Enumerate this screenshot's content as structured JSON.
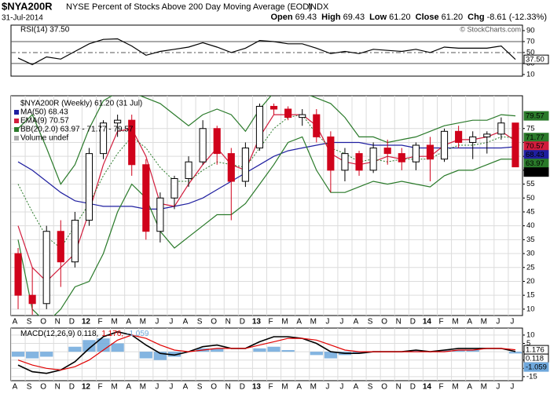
{
  "header": {
    "symbol": "$NYA200R",
    "description": "NYSE Percent of Stocks Above 200 Day Moving Average (EOD)",
    "exchange": "INDX",
    "date": "31-Jul-2014",
    "quote": [
      {
        "label": "Open",
        "value": "69.43"
      },
      {
        "label": "High",
        "value": "69.43"
      },
      {
        "label": "Low",
        "value": "61.20"
      },
      {
        "label": "Close",
        "value": "61.20"
      },
      {
        "label": "Chg",
        "value": "-8.61 (-12.33%)"
      }
    ],
    "credit": "© StockCharts.com"
  },
  "chart_data": [
    {
      "type": "line",
      "title": "RSI(14) 37.50",
      "color": "#000000",
      "values": [
        40,
        28,
        42,
        38,
        52,
        66,
        74,
        75,
        62,
        45,
        52,
        56,
        60,
        68,
        60,
        50,
        58,
        72,
        70,
        66,
        66,
        58,
        48,
        52,
        48,
        56,
        54,
        52,
        56,
        50,
        60,
        58,
        58,
        58,
        62,
        37.5
      ],
      "value_labels": [
        null,
        null,
        null,
        null,
        null,
        null,
        null,
        null,
        null,
        null,
        null,
        null,
        null,
        null,
        null,
        null,
        null,
        null,
        null,
        null,
        null,
        null,
        null,
        null,
        null,
        null,
        null,
        null,
        null,
        null,
        null,
        null,
        null,
        null,
        null,
        "37.50"
      ],
      "ylim": [
        7,
        100
      ],
      "yticks": [
        10,
        30,
        50,
        70,
        90
      ],
      "ref_lines": [
        30,
        50,
        70
      ]
    },
    {
      "type": "candlestick",
      "title": "$NYA200R (Weekly) 61.20 (31 Jul)",
      "categories": [
        "A",
        "S",
        "O",
        "N",
        "D",
        "12",
        "F",
        "M",
        "A",
        "M",
        "J",
        "J",
        "A",
        "S",
        "O",
        "N",
        "D",
        "13",
        "F",
        "M",
        "A",
        "M",
        "J",
        "J",
        "A",
        "S",
        "O",
        "N",
        "D",
        "14",
        "F",
        "M",
        "A",
        "M",
        "J",
        "J"
      ],
      "ohlc": {
        "open": [
          30,
          15,
          12,
          38,
          27,
          42,
          66,
          77,
          78,
          62,
          38,
          50,
          57,
          63,
          75,
          66,
          56,
          68,
          83,
          82,
          79,
          80,
          72,
          60,
          66,
          60,
          68,
          66,
          63,
          69,
          64,
          74,
          70,
          72,
          73,
          77
        ],
        "high": [
          32,
          25,
          40,
          42,
          45,
          68,
          78,
          80,
          80,
          64,
          52,
          58,
          65,
          78,
          76,
          68,
          70,
          84,
          84,
          83,
          82,
          82,
          74,
          68,
          67,
          70,
          71,
          68,
          70,
          72,
          75,
          76,
          74,
          74,
          79,
          77
        ],
        "low": [
          10,
          8,
          10,
          18,
          25,
          40,
          64,
          72,
          58,
          35,
          34,
          46,
          54,
          62,
          62,
          42,
          54,
          67,
          80,
          78,
          76,
          70,
          52,
          56,
          58,
          59,
          62,
          60,
          60,
          56,
          63,
          68,
          64,
          66,
          71,
          61.2
        ],
        "close": [
          15,
          12,
          38,
          27,
          42,
          66,
          77,
          78,
          62,
          38,
          50,
          57,
          63,
          75,
          66,
          56,
          68,
          83,
          82,
          79,
          80,
          72,
          60,
          66,
          60,
          68,
          66,
          63,
          69,
          64,
          74,
          70,
          72,
          73,
          77,
          61.2
        ],
        "value_labels": [
          null,
          null,
          null,
          null,
          null,
          null,
          null,
          null,
          null,
          null,
          null,
          null,
          null,
          null,
          null,
          null,
          null,
          null,
          null,
          null,
          null,
          null,
          null,
          null,
          null,
          null,
          null,
          null,
          null,
          null,
          null,
          null,
          null,
          null,
          null,
          "61.20"
        ]
      },
      "up_color": "#000000",
      "down_color": "#d0021b",
      "overlays": [
        {
          "name": "MA(50) 68.43",
          "color": "#1f1fa0",
          "values": [
            63,
            60,
            56,
            52,
            49,
            48,
            47,
            47,
            47,
            46,
            46,
            47,
            48,
            50,
            53,
            56,
            59,
            62,
            65,
            67,
            68,
            69,
            70,
            70,
            70,
            69,
            69,
            69,
            68,
            68,
            68,
            68,
            68,
            68,
            68,
            68.43
          ]
        },
        {
          "name": "EMA(9) 70.57",
          "color": "#d21c3c",
          "values": [
            40,
            25,
            20,
            25,
            30,
            45,
            62,
            74,
            75,
            65,
            48,
            47,
            55,
            62,
            68,
            62,
            60,
            72,
            80,
            80,
            80,
            76,
            66,
            63,
            62,
            63,
            65,
            64,
            65,
            65,
            69,
            71,
            71,
            72,
            74,
            70.57
          ]
        },
        {
          "name": "BB(20,2.0) 63.97 - 71.77 - 79.57",
          "color": "#2a7a2a",
          "upper": [
            75,
            80,
            68,
            55,
            62,
            75,
            85,
            88,
            88,
            86,
            84,
            80,
            76,
            80,
            82,
            80,
            74,
            82,
            88,
            88,
            88,
            86,
            84,
            79,
            72,
            72,
            70,
            71,
            72,
            74,
            76,
            77,
            78,
            78,
            80,
            79.57
          ],
          "middle": [
            55,
            45,
            36,
            32,
            40,
            48,
            58,
            66,
            72,
            68,
            61,
            56,
            56,
            60,
            63,
            62,
            61,
            68,
            75,
            79,
            80,
            73,
            68,
            66,
            63,
            64,
            63,
            64,
            64,
            64,
            67,
            69,
            69,
            70,
            72,
            71.77
          ],
          "lower": [
            35,
            10,
            5,
            10,
            18,
            20,
            30,
            45,
            55,
            50,
            38,
            32,
            36,
            40,
            44,
            44,
            48,
            55,
            62,
            70,
            72,
            60,
            52,
            52,
            54,
            56,
            55,
            56,
            55,
            54,
            58,
            60,
            60,
            62,
            64,
            63.97
          ]
        }
      ],
      "legend_extra": "Volume undef",
      "ylim": [
        7.7,
        86.8
      ],
      "yticks": [
        10,
        15,
        20,
        25,
        30,
        35,
        40,
        45,
        50,
        55,
        60,
        65,
        70,
        75
      ],
      "grid": true
    },
    {
      "type": "macd",
      "categories": [
        "A",
        "S",
        "O",
        "N",
        "D",
        "12",
        "F",
        "M",
        "A",
        "M",
        "J",
        "J",
        "A",
        "S",
        "O",
        "N",
        "D",
        "13",
        "F",
        "M",
        "A",
        "M",
        "J",
        "J",
        "A",
        "S",
        "O",
        "N",
        "D",
        "14",
        "F",
        "M",
        "A",
        "M",
        "J",
        "J"
      ],
      "series": [
        {
          "name": "MACD(12,26,9) 0.118,",
          "color": "#000000",
          "values": [
            -8,
            -12,
            -13,
            -11,
            -6,
            2,
            9,
            12,
            10,
            4,
            -1,
            -2,
            0,
            3,
            4,
            2,
            2,
            6,
            9,
            9,
            8,
            5,
            0,
            -1,
            -1,
            0,
            0,
            0,
            1,
            0,
            1,
            2,
            2,
            2,
            2,
            0.118
          ]
        },
        {
          "name": "1.176,",
          "color": "#e00000",
          "values": [
            -5,
            -8,
            -10,
            -11,
            -9,
            -5,
            1,
            7,
            10,
            8,
            4,
            1,
            0,
            1,
            2,
            2,
            2,
            4,
            6,
            8,
            8,
            7,
            4,
            1,
            0,
            0,
            0,
            0,
            0,
            0,
            0,
            1,
            1,
            2,
            2,
            1.176
          ]
        },
        {
          "name": "-1.059",
          "color": "#6fa8dc",
          "kind": "histogram",
          "values": [
            -3,
            -4,
            -3,
            0,
            3,
            7,
            8,
            5,
            0,
            -4,
            -5,
            -3,
            0,
            2,
            2,
            0,
            0,
            2,
            3,
            1,
            0,
            -2,
            -4,
            -2,
            -1,
            0,
            0,
            0,
            1,
            0,
            1,
            1,
            1,
            0,
            0,
            -1.059
          ]
        }
      ],
      "ylim": [
        -17.4,
        14.2
      ],
      "yticks": [
        -15,
        -10,
        -5,
        0,
        5,
        10
      ],
      "grid": true
    }
  ]
}
